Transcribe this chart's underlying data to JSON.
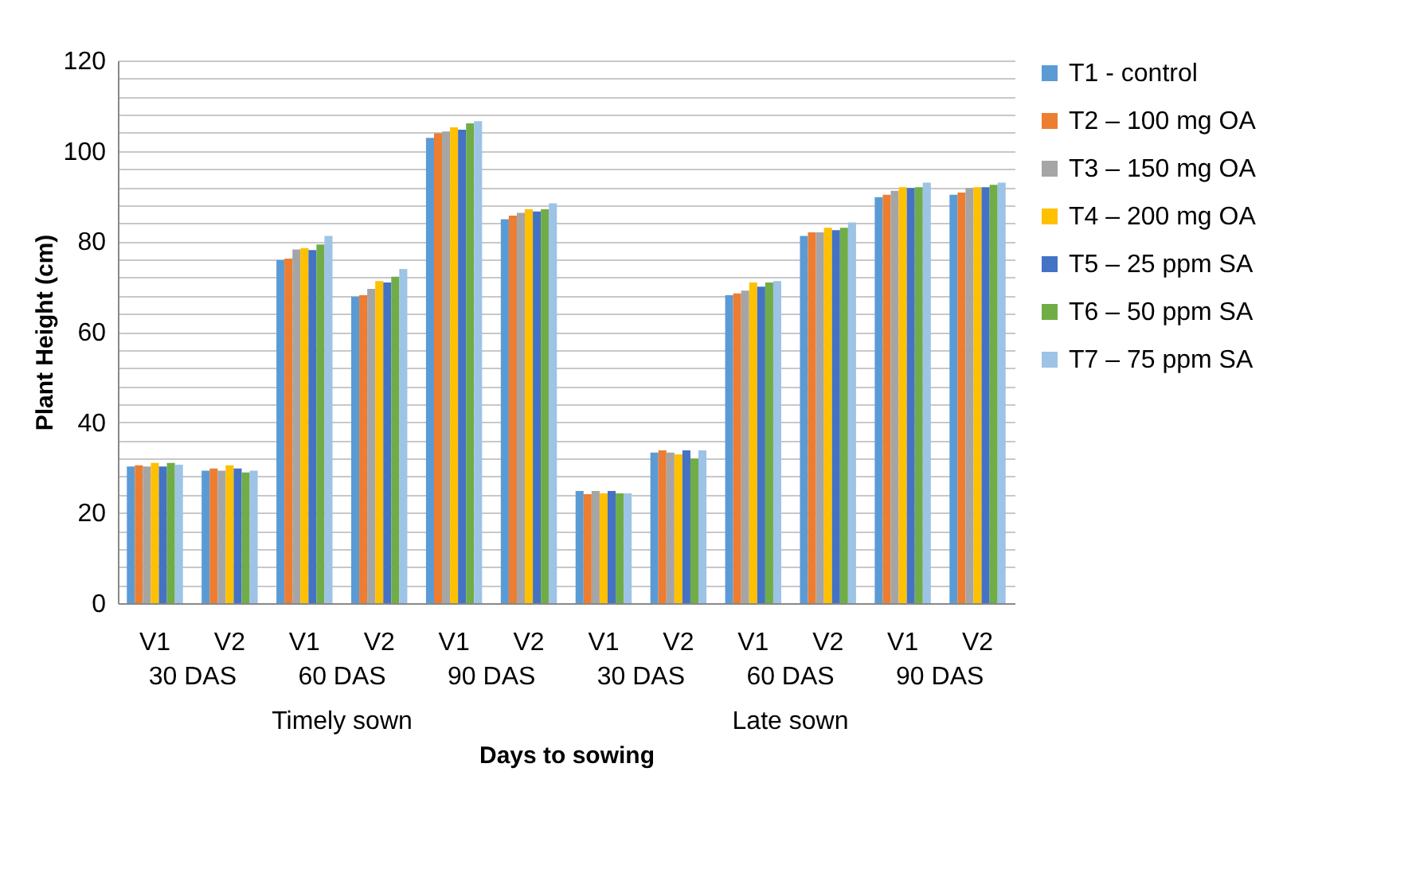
{
  "chart_data": {
    "type": "bar",
    "xlabel": "Days to sowing",
    "ylabel": "Plant Height (cm)",
    "categories": [
      "V1",
      "V2",
      "V1",
      "V2",
      "V1",
      "V2",
      "V1",
      "V2",
      "V1",
      "V2",
      "V1",
      "V2"
    ],
    "annotations": [
      "30 DAS",
      "60 DAS",
      "90 DAS",
      "30 DAS",
      "60 DAS",
      "90 DAS",
      "Timely sown",
      "Late sown"
    ],
    "series": [
      {
        "name": "T1 - control",
        "color": "#5b9bd5",
        "values": [
          30.2,
          29.3,
          75.9,
          67.8,
          102.9,
          84.9,
          24.8,
          33.3,
          68.1,
          81.2,
          89.8,
          90.3
        ]
      },
      {
        "name": "T2 – 100 mg OA",
        "color": "#ed7d31",
        "values": [
          30.5,
          29.8,
          76.2,
          68.1,
          103.9,
          85.7,
          24.1,
          33.8,
          68.5,
          82.0,
          90.3,
          90.8
        ]
      },
      {
        "name": "T3 – 150 mg OA",
        "color": "#a5a5a5",
        "values": [
          30.2,
          29.3,
          78.2,
          69.5,
          104.3,
          86.3,
          24.8,
          33.3,
          69.1,
          82.0,
          91.2,
          91.8
        ]
      },
      {
        "name": "T4 – 200 mg OA",
        "color": "#ffc000",
        "values": [
          31.0,
          30.5,
          78.5,
          71.2,
          105.2,
          87.1,
          24.3,
          32.9,
          70.9,
          83.0,
          92.0,
          92.0
        ]
      },
      {
        "name": "T5 – 25 ppm SA",
        "color": "#4472c4",
        "values": [
          30.2,
          29.8,
          78.1,
          70.9,
          104.7,
          86.6,
          24.8,
          33.8,
          70.0,
          82.5,
          91.8,
          92.0
        ]
      },
      {
        "name": "T6 – 50 ppm SA",
        "color": "#70ad47",
        "values": [
          31.0,
          28.9,
          79.3,
          72.2,
          106.1,
          87.1,
          24.3,
          32.0,
          70.9,
          83.0,
          92.0,
          92.5
        ]
      },
      {
        "name": "T7 – 75 ppm SA",
        "color": "#9dc3e6",
        "values": [
          30.6,
          29.3,
          81.2,
          73.9,
          106.6,
          88.4,
          24.3,
          33.8,
          71.2,
          84.2,
          93.0,
          93.0
        ]
      }
    ],
    "ylim": [
      0,
      120
    ],
    "yticks": [
      0,
      {
        "value": 4,
        "label": null
      },
      {
        "value": 8,
        "label": null
      },
      {
        "value": 12,
        "label": null
      },
      {
        "value": 16,
        "label": null
      },
      20,
      {
        "value": 24,
        "label": null
      },
      {
        "value": 28,
        "label": null
      },
      {
        "value": 32,
        "label": null
      },
      {
        "value": 36,
        "label": null
      },
      40,
      {
        "value": 44,
        "label": null
      },
      {
        "value": 48,
        "label": null
      },
      {
        "value": 52,
        "label": null
      },
      {
        "value": 56,
        "label": null
      },
      60,
      {
        "value": 64,
        "label": null
      },
      {
        "value": 68,
        "label": null
      },
      {
        "value": 72,
        "label": null
      },
      {
        "value": 76,
        "label": null
      },
      80,
      {
        "value": 84,
        "label": null
      },
      {
        "value": 88,
        "label": null
      },
      {
        "value": 92,
        "label": null
      },
      {
        "value": 96,
        "label": null
      },
      100,
      {
        "value": 104,
        "label": null
      },
      {
        "value": 108,
        "label": null
      },
      {
        "value": 112,
        "label": null
      },
      {
        "value": 116,
        "label": null
      },
      120
    ],
    "grid": "y",
    "legend": "right"
  }
}
